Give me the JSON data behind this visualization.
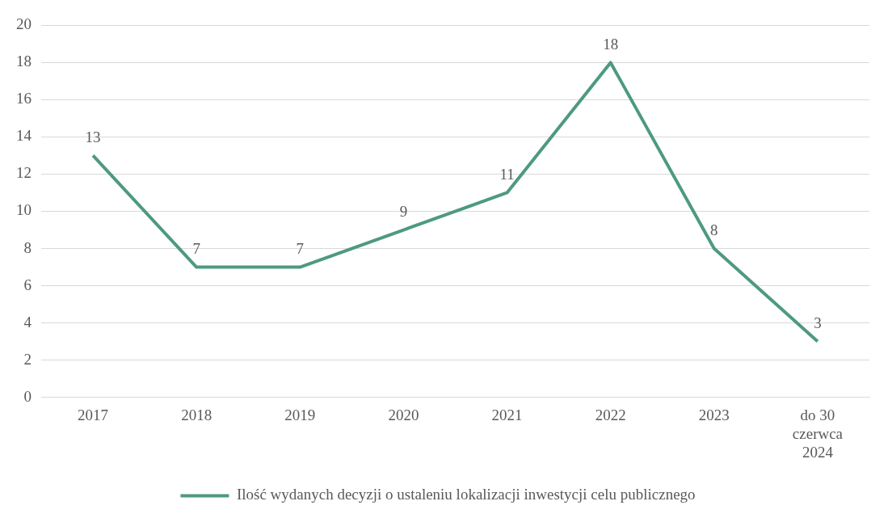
{
  "chart_data": {
    "type": "line",
    "categories": [
      "2017",
      "2018",
      "2019",
      "2020",
      "2021",
      "2022",
      "2023",
      "do 30 czerwca 2024"
    ],
    "series": [
      {
        "name": "Ilość wydanych decyzji o ustaleniu lokalizacji inwestycji celu publicznego",
        "color": "#4e9a7e",
        "values": [
          13,
          7,
          7,
          9,
          11,
          18,
          8,
          3
        ]
      }
    ],
    "ylim": [
      0,
      20
    ],
    "yticks": [
      0,
      2,
      4,
      6,
      8,
      10,
      12,
      14,
      16,
      18,
      20
    ],
    "grid": "y",
    "legend": "bottom",
    "data_labels": true,
    "marker": "none",
    "line_style": "solid"
  }
}
